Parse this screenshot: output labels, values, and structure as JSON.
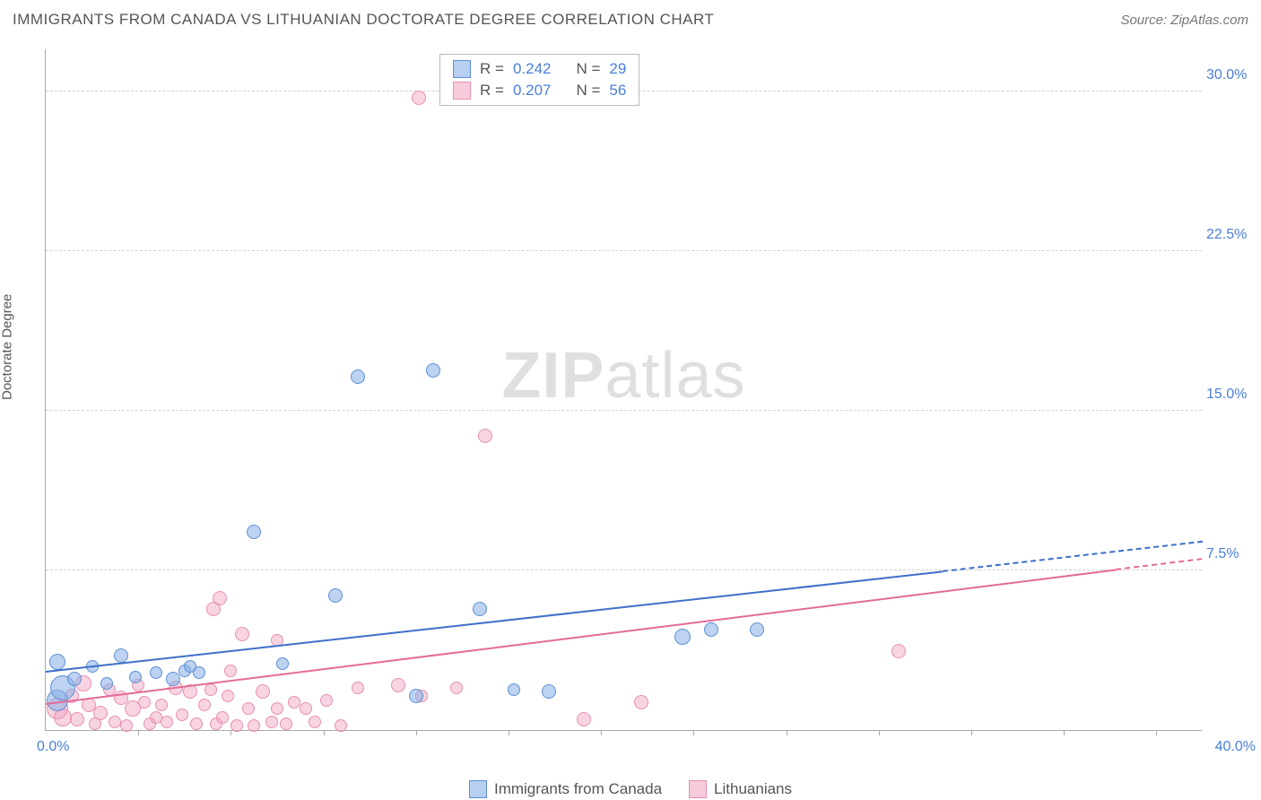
{
  "title": "IMMIGRANTS FROM CANADA VS LITHUANIAN DOCTORATE DEGREE CORRELATION CHART",
  "source": "Source: ZipAtlas.com",
  "y_axis_label": "Doctorate Degree",
  "watermark_a": "ZIP",
  "watermark_b": "atlas",
  "chart": {
    "type": "scatter",
    "xlim": [
      0,
      40
    ],
    "ylim": [
      0,
      32
    ],
    "x_tick_step": 3.2,
    "y_ticks": [
      7.5,
      15.0,
      22.5,
      30.0
    ],
    "y_tick_labels": [
      "7.5%",
      "15.0%",
      "22.5%",
      "30.0%"
    ],
    "x_start_label": "0.0%",
    "x_end_label": "40.0%",
    "background": "#ffffff",
    "grid_color": "#d0d0d0",
    "axis_color": "#aaaaaa",
    "tick_label_color": "#4a7fd8",
    "text_color": "#555555",
    "marker_radius_min": 6,
    "marker_radius_max": 14,
    "series": {
      "blue": {
        "label": "Immigrants from Canada",
        "fill": "rgba(135,175,230,0.55)",
        "stroke": "#5d8fd6",
        "line_color": "#3e6fc9",
        "r_value": "0.242",
        "n_value": "29",
        "trend": {
          "x0": 0,
          "y0": 2.7,
          "x1": 31,
          "y1": 7.4,
          "x_dash_end": 40,
          "y_dash_end": 8.8
        },
        "points": [
          {
            "x": 0.4,
            "y": 1.4,
            "r": 12
          },
          {
            "x": 0.6,
            "y": 2.0,
            "r": 14
          },
          {
            "x": 0.4,
            "y": 3.2,
            "r": 9
          },
          {
            "x": 1.0,
            "y": 2.4,
            "r": 8
          },
          {
            "x": 1.6,
            "y": 3.0,
            "r": 7
          },
          {
            "x": 2.1,
            "y": 2.2,
            "r": 7
          },
          {
            "x": 2.6,
            "y": 3.5,
            "r": 8
          },
          {
            "x": 3.1,
            "y": 2.5,
            "r": 7
          },
          {
            "x": 3.8,
            "y": 2.7,
            "r": 7
          },
          {
            "x": 4.4,
            "y": 2.4,
            "r": 8
          },
          {
            "x": 4.8,
            "y": 2.8,
            "r": 7
          },
          {
            "x": 5.0,
            "y": 3.0,
            "r": 7
          },
          {
            "x": 5.3,
            "y": 2.7,
            "r": 7
          },
          {
            "x": 7.2,
            "y": 9.3,
            "r": 8
          },
          {
            "x": 8.2,
            "y": 3.1,
            "r": 7
          },
          {
            "x": 10.0,
            "y": 6.3,
            "r": 8
          },
          {
            "x": 10.8,
            "y": 16.6,
            "r": 8
          },
          {
            "x": 12.8,
            "y": 1.6,
            "r": 8
          },
          {
            "x": 13.4,
            "y": 16.9,
            "r": 8
          },
          {
            "x": 15.0,
            "y": 5.7,
            "r": 8
          },
          {
            "x": 16.2,
            "y": 1.9,
            "r": 7
          },
          {
            "x": 17.4,
            "y": 1.8,
            "r": 8
          },
          {
            "x": 22.0,
            "y": 4.4,
            "r": 9
          },
          {
            "x": 23.0,
            "y": 4.7,
            "r": 8
          },
          {
            "x": 24.6,
            "y": 4.7,
            "r": 8
          }
        ]
      },
      "pink": {
        "label": "Lithuanians",
        "fill": "rgba(240,160,190,0.45)",
        "stroke": "#e78fb0",
        "line_color": "#e36b98",
        "r_value": "0.207",
        "n_value": "56",
        "trend": {
          "x0": 0,
          "y0": 1.2,
          "x1": 37,
          "y1": 7.5,
          "x_dash_end": 40,
          "y_dash_end": 8.0
        },
        "points": [
          {
            "x": 0.4,
            "y": 1.0,
            "r": 12
          },
          {
            "x": 0.6,
            "y": 0.6,
            "r": 10
          },
          {
            "x": 0.9,
            "y": 1.6,
            "r": 8
          },
          {
            "x": 1.1,
            "y": 0.5,
            "r": 8
          },
          {
            "x": 1.3,
            "y": 2.2,
            "r": 9
          },
          {
            "x": 1.5,
            "y": 1.2,
            "r": 8
          },
          {
            "x": 1.7,
            "y": 0.3,
            "r": 7
          },
          {
            "x": 1.9,
            "y": 0.8,
            "r": 8
          },
          {
            "x": 2.2,
            "y": 1.9,
            "r": 7
          },
          {
            "x": 2.4,
            "y": 0.4,
            "r": 7
          },
          {
            "x": 2.6,
            "y": 1.5,
            "r": 8
          },
          {
            "x": 2.8,
            "y": 0.2,
            "r": 7
          },
          {
            "x": 3.0,
            "y": 1.0,
            "r": 9
          },
          {
            "x": 3.2,
            "y": 2.1,
            "r": 7
          },
          {
            "x": 3.4,
            "y": 1.3,
            "r": 7
          },
          {
            "x": 3.6,
            "y": 0.3,
            "r": 7
          },
          {
            "x": 3.8,
            "y": 0.6,
            "r": 7
          },
          {
            "x": 4.0,
            "y": 1.2,
            "r": 7
          },
          {
            "x": 4.2,
            "y": 0.4,
            "r": 7
          },
          {
            "x": 4.5,
            "y": 2.0,
            "r": 8
          },
          {
            "x": 4.7,
            "y": 0.7,
            "r": 7
          },
          {
            "x": 5.0,
            "y": 1.8,
            "r": 8
          },
          {
            "x": 5.2,
            "y": 0.3,
            "r": 7
          },
          {
            "x": 5.5,
            "y": 1.2,
            "r": 7
          },
          {
            "x": 5.7,
            "y": 1.9,
            "r": 7
          },
          {
            "x": 5.8,
            "y": 5.7,
            "r": 8
          },
          {
            "x": 5.9,
            "y": 0.3,
            "r": 7
          },
          {
            "x": 6.0,
            "y": 6.2,
            "r": 8
          },
          {
            "x": 6.1,
            "y": 0.6,
            "r": 7
          },
          {
            "x": 6.3,
            "y": 1.6,
            "r": 7
          },
          {
            "x": 6.4,
            "y": 2.8,
            "r": 7
          },
          {
            "x": 6.6,
            "y": 0.2,
            "r": 7
          },
          {
            "x": 6.8,
            "y": 4.5,
            "r": 8
          },
          {
            "x": 7.0,
            "y": 1.0,
            "r": 7
          },
          {
            "x": 7.2,
            "y": 0.2,
            "r": 7
          },
          {
            "x": 7.5,
            "y": 1.8,
            "r": 8
          },
          {
            "x": 7.8,
            "y": 0.4,
            "r": 7
          },
          {
            "x": 8.0,
            "y": 1.0,
            "r": 7
          },
          {
            "x": 8.0,
            "y": 4.2,
            "r": 7
          },
          {
            "x": 8.3,
            "y": 0.3,
            "r": 7
          },
          {
            "x": 8.6,
            "y": 1.3,
            "r": 7
          },
          {
            "x": 9.0,
            "y": 1.0,
            "r": 7
          },
          {
            "x": 9.3,
            "y": 0.4,
            "r": 7
          },
          {
            "x": 9.7,
            "y": 1.4,
            "r": 7
          },
          {
            "x": 10.2,
            "y": 0.2,
            "r": 7
          },
          {
            "x": 10.8,
            "y": 2.0,
            "r": 7
          },
          {
            "x": 12.2,
            "y": 2.1,
            "r": 8
          },
          {
            "x": 13.0,
            "y": 1.6,
            "r": 7
          },
          {
            "x": 12.9,
            "y": 29.7,
            "r": 8
          },
          {
            "x": 14.2,
            "y": 2.0,
            "r": 7
          },
          {
            "x": 15.2,
            "y": 13.8,
            "r": 8
          },
          {
            "x": 18.6,
            "y": 0.5,
            "r": 8
          },
          {
            "x": 20.6,
            "y": 1.3,
            "r": 8
          },
          {
            "x": 29.5,
            "y": 3.7,
            "r": 8
          }
        ]
      }
    }
  },
  "stats_legend": {
    "r_label": "R =",
    "n_label": "N ="
  }
}
